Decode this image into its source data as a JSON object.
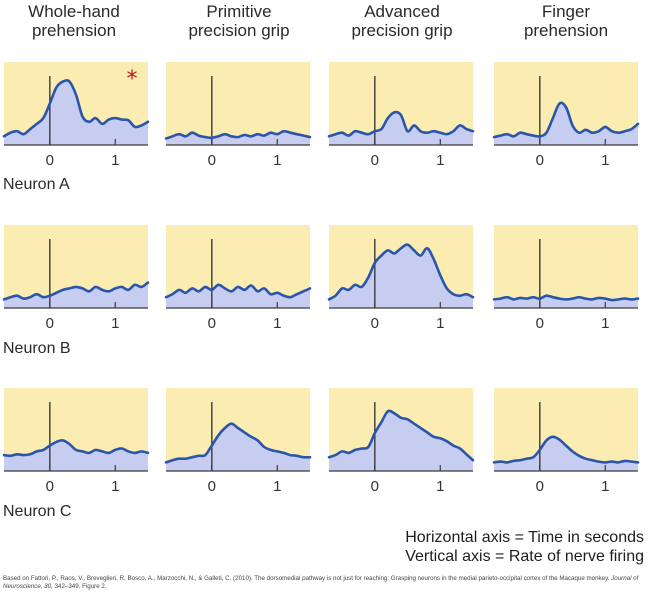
{
  "columns": [
    {
      "line1": "Whole-hand",
      "line2": "prehension"
    },
    {
      "line1": "Primitive",
      "line2": "precision grip"
    },
    {
      "line1": "Advanced",
      "line2": "precision grip"
    },
    {
      "line1": "Finger",
      "line2": "prehension"
    }
  ],
  "rows": [
    "Neuron A",
    "Neuron B",
    "Neuron C"
  ],
  "axis_note": {
    "horizontal": "Horizontal axis = Time in seconds",
    "vertical": "Vertical axis = Rate of nerve firing"
  },
  "credit": {
    "before_journal": "Based on Fattori, P., Raos, V., Breveglieri, R, Bosco, A., Marzocchi, N., & Galleti, C. (2010). The dorsomedial pathway is not just for reaching: Grasping neurons in the medial parieto-occipital cortex of the Macaque monkey. ",
    "journal": "Journal of Neuroscience, 30,",
    "after_journal": " 342–349. Figure 2."
  },
  "colors": {
    "panel_bg": "#fbecb2",
    "fill": "#c7cdf0",
    "line": "#2a55ad",
    "axis": "#3a3a3a",
    "marker": "#c0121b"
  },
  "chart_data": {
    "type": "area",
    "xlabel": "Time in seconds",
    "ylabel": "Rate of nerve firing",
    "xlim": [
      -0.7,
      1.5
    ],
    "ylim": [
      0,
      1
    ],
    "xticks": [
      "0",
      "1"
    ],
    "grid": false,
    "x": [
      -0.7,
      -0.6,
      -0.5,
      -0.4,
      -0.3,
      -0.2,
      -0.1,
      0.0,
      0.1,
      0.2,
      0.3,
      0.4,
      0.5,
      0.6,
      0.7,
      0.8,
      0.9,
      1.0,
      1.1,
      1.2,
      1.3,
      1.4,
      1.5
    ],
    "panels": [
      {
        "row": "Neuron A",
        "column": "Whole-hand prehension",
        "marked": true,
        "marker": "*",
        "values": [
          0.05,
          0.1,
          0.12,
          0.08,
          0.15,
          0.22,
          0.3,
          0.5,
          0.72,
          0.8,
          0.8,
          0.62,
          0.32,
          0.25,
          0.3,
          0.22,
          0.28,
          0.3,
          0.28,
          0.27,
          0.18,
          0.2,
          0.25
        ]
      },
      {
        "row": "Neuron A",
        "column": "Primitive precision grip",
        "values": [
          0.02,
          0.05,
          0.08,
          0.05,
          0.1,
          0.06,
          0.04,
          0.03,
          0.05,
          0.08,
          0.05,
          0.04,
          0.07,
          0.05,
          0.08,
          0.06,
          0.1,
          0.08,
          0.12,
          0.1,
          0.08,
          0.06,
          0.04
        ]
      },
      {
        "row": "Neuron A",
        "column": "Advanced precision grip",
        "values": [
          0.05,
          0.08,
          0.1,
          0.06,
          0.12,
          0.1,
          0.08,
          0.12,
          0.15,
          0.3,
          0.38,
          0.34,
          0.12,
          0.2,
          0.12,
          0.1,
          0.12,
          0.1,
          0.08,
          0.12,
          0.2,
          0.15,
          0.12
        ]
      },
      {
        "row": "Neuron A",
        "column": "Finger prehension",
        "values": [
          0.04,
          0.06,
          0.08,
          0.05,
          0.1,
          0.08,
          0.06,
          0.05,
          0.1,
          0.3,
          0.5,
          0.45,
          0.2,
          0.1,
          0.14,
          0.1,
          0.12,
          0.18,
          0.12,
          0.1,
          0.12,
          0.15,
          0.22
        ]
      },
      {
        "row": "Neuron B",
        "column": "Whole-hand prehension",
        "values": [
          0.05,
          0.08,
          0.1,
          0.06,
          0.08,
          0.12,
          0.08,
          0.1,
          0.14,
          0.18,
          0.2,
          0.22,
          0.2,
          0.16,
          0.22,
          0.18,
          0.16,
          0.2,
          0.22,
          0.18,
          0.25,
          0.22,
          0.28
        ]
      },
      {
        "row": "Neuron B",
        "column": "Primitive precision grip",
        "values": [
          0.08,
          0.12,
          0.18,
          0.14,
          0.2,
          0.16,
          0.22,
          0.18,
          0.25,
          0.2,
          0.16,
          0.22,
          0.18,
          0.24,
          0.16,
          0.2,
          0.12,
          0.14,
          0.1,
          0.08,
          0.12,
          0.16,
          0.2
        ]
      },
      {
        "row": "Neuron B",
        "column": "Advanced precision grip",
        "values": [
          0.05,
          0.1,
          0.2,
          0.18,
          0.25,
          0.22,
          0.35,
          0.55,
          0.65,
          0.72,
          0.68,
          0.75,
          0.8,
          0.72,
          0.65,
          0.75,
          0.6,
          0.38,
          0.2,
          0.12,
          0.1,
          0.12,
          0.08
        ]
      },
      {
        "row": "Neuron B",
        "column": "Finger prehension",
        "values": [
          0.05,
          0.06,
          0.08,
          0.05,
          0.07,
          0.06,
          0.08,
          0.06,
          0.1,
          0.08,
          0.06,
          0.05,
          0.06,
          0.08,
          0.06,
          0.05,
          0.07,
          0.06,
          0.04,
          0.05,
          0.06,
          0.05,
          0.06
        ]
      },
      {
        "row": "Neuron C",
        "column": "Whole-hand prehension",
        "values": [
          0.15,
          0.14,
          0.16,
          0.15,
          0.16,
          0.2,
          0.22,
          0.28,
          0.33,
          0.35,
          0.3,
          0.22,
          0.2,
          0.18,
          0.22,
          0.2,
          0.18,
          0.22,
          0.24,
          0.2,
          0.18,
          0.2,
          0.18
        ]
      },
      {
        "row": "Neuron C",
        "column": "Primitive precision grip",
        "values": [
          0.05,
          0.08,
          0.1,
          0.1,
          0.12,
          0.14,
          0.15,
          0.28,
          0.42,
          0.52,
          0.58,
          0.52,
          0.46,
          0.4,
          0.35,
          0.26,
          0.22,
          0.2,
          0.18,
          0.15,
          0.14,
          0.12,
          0.12
        ]
      },
      {
        "row": "Neuron C",
        "column": "Advanced precision grip",
        "values": [
          0.12,
          0.15,
          0.2,
          0.18,
          0.22,
          0.24,
          0.26,
          0.45,
          0.6,
          0.75,
          0.72,
          0.66,
          0.64,
          0.58,
          0.52,
          0.46,
          0.4,
          0.38,
          0.34,
          0.28,
          0.24,
          0.16,
          0.08
        ]
      },
      {
        "row": "Neuron C",
        "column": "Finger prehension",
        "values": [
          0.05,
          0.06,
          0.05,
          0.07,
          0.08,
          0.1,
          0.12,
          0.22,
          0.35,
          0.4,
          0.36,
          0.28,
          0.2,
          0.14,
          0.1,
          0.08,
          0.06,
          0.05,
          0.06,
          0.05,
          0.07,
          0.06,
          0.05
        ]
      }
    ]
  }
}
